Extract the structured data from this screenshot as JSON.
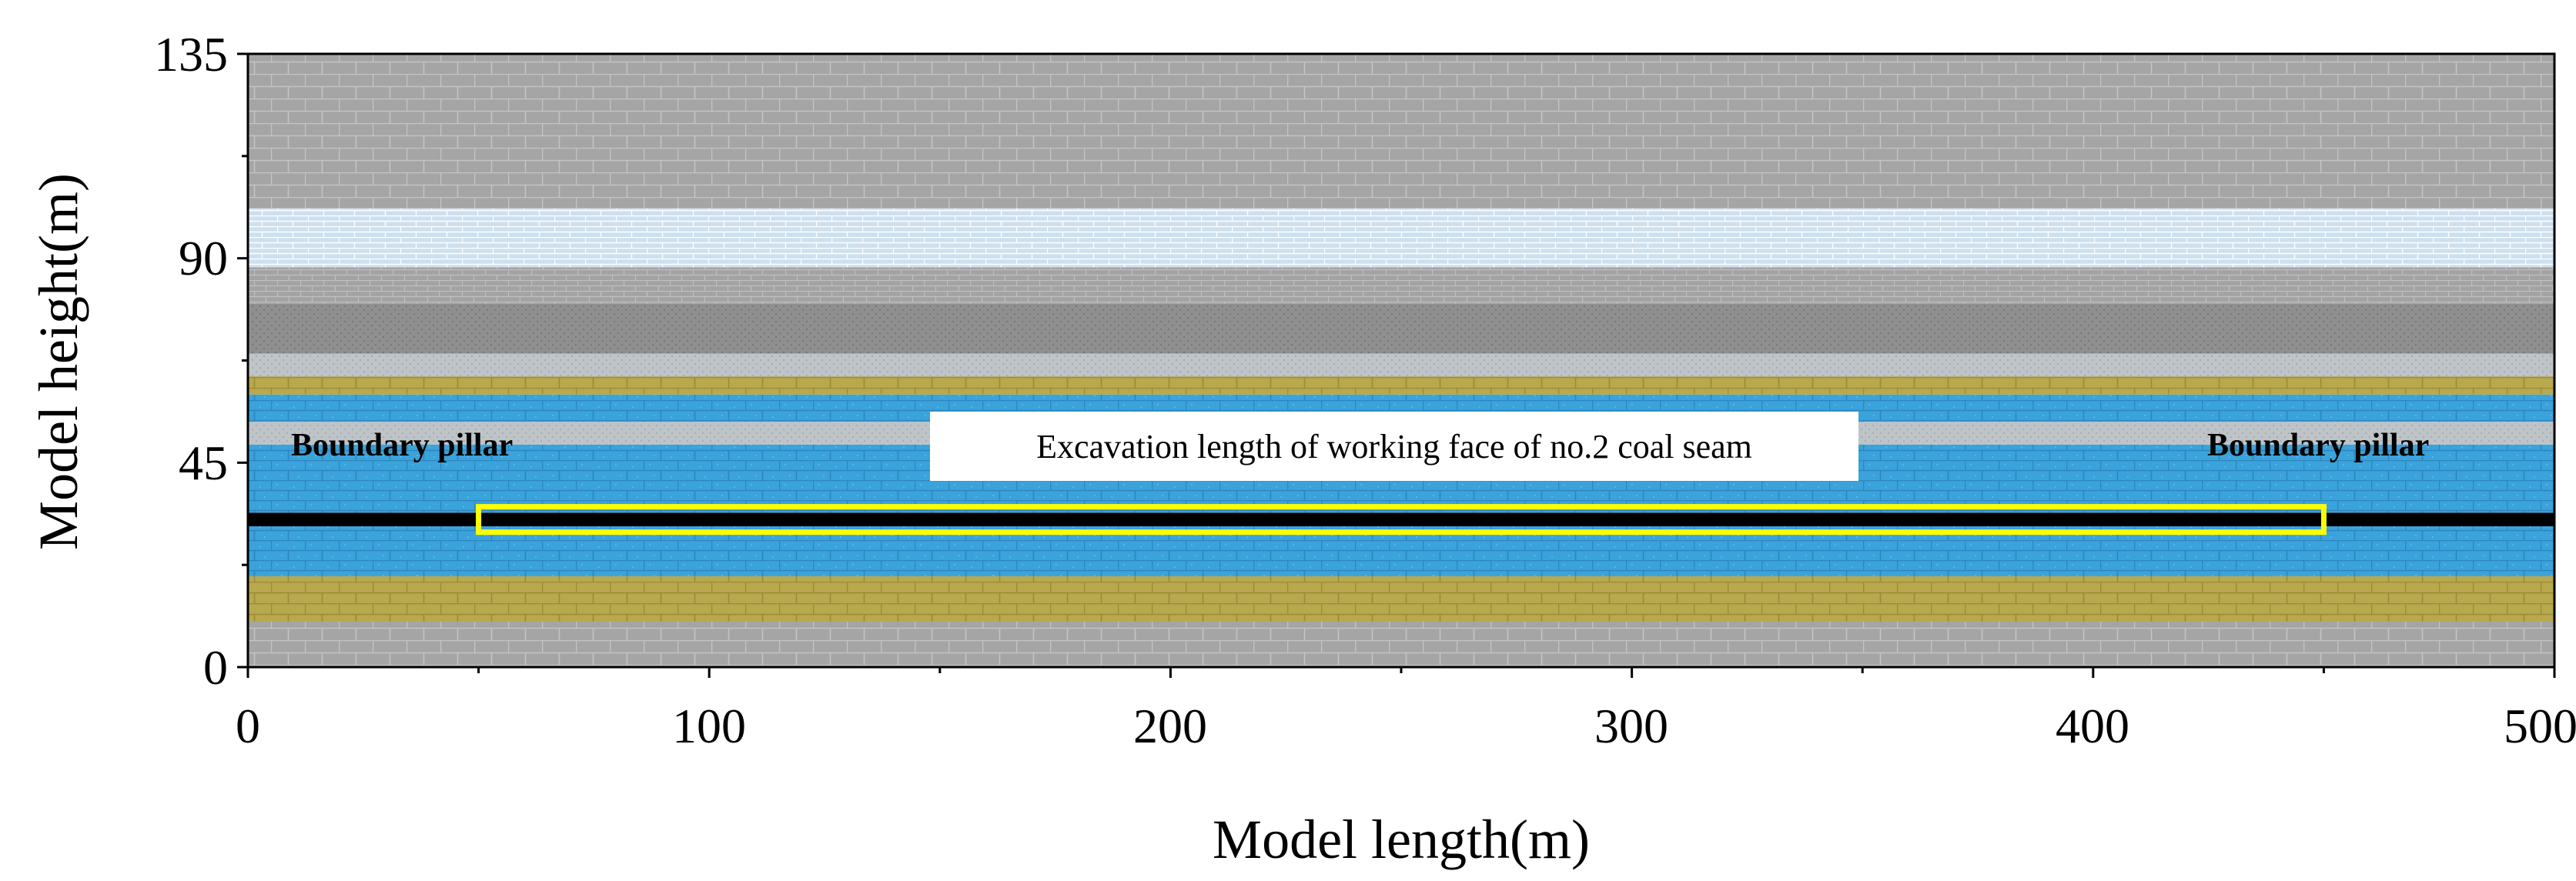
{
  "chart_data": {
    "type": "diagram",
    "xlabel": "Model length(m)",
    "ylabel": "Model height(m)",
    "xlim": [
      0,
      500
    ],
    "ylim": [
      0,
      135
    ],
    "xticks": [
      "0",
      "100",
      "200",
      "300",
      "400",
      "500"
    ],
    "yticks": [
      "0",
      "45",
      "90",
      "135"
    ],
    "strata": [
      {
        "from": 0,
        "to": 10,
        "material": "gray-brick",
        "color": "#a5a5a5"
      },
      {
        "from": 10,
        "to": 20,
        "material": "olive-brick",
        "color": "#b8a84e"
      },
      {
        "from": 20,
        "to": 31,
        "material": "blue-brick",
        "color": "#3aa3dc"
      },
      {
        "from": 31,
        "to": 34,
        "material": "no.2 coal seam",
        "color": "#000000"
      },
      {
        "from": 34,
        "to": 49,
        "material": "blue-brick",
        "color": "#3aa3dc"
      },
      {
        "from": 49,
        "to": 54,
        "material": "light-gray",
        "color": "#bfc4c8"
      },
      {
        "from": 54,
        "to": 60,
        "material": "blue-brick",
        "color": "#3aa3dc"
      },
      {
        "from": 60,
        "to": 64,
        "material": "olive-brick",
        "color": "#b8a84e"
      },
      {
        "from": 64,
        "to": 69,
        "material": "light-gray",
        "color": "#bfc4c8"
      },
      {
        "from": 69,
        "to": 80,
        "material": "dark-gray",
        "color": "#8f8f8f"
      },
      {
        "from": 80,
        "to": 88,
        "material": "mid-gray",
        "color": "#a3a3a3"
      },
      {
        "from": 88,
        "to": 101,
        "material": "light-blue",
        "color": "#cde0ef"
      },
      {
        "from": 101,
        "to": 135,
        "material": "gray-brick",
        "color": "#a5a5a5"
      }
    ],
    "annotations": {
      "left_pillar": "Boundary pillar",
      "right_pillar": "Boundary pillar",
      "excavation": "Excavation length of working face of no.2 coal seam"
    },
    "excavation_range_m": [
      50,
      450
    ]
  }
}
